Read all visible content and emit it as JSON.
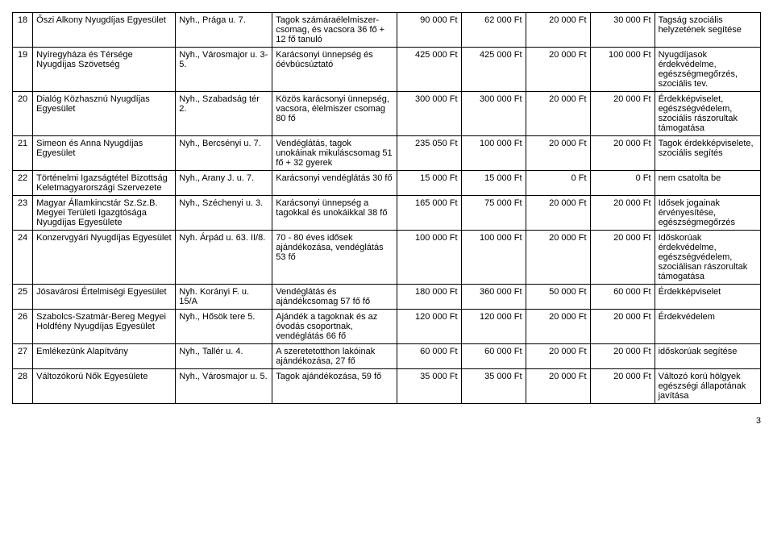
{
  "page_number": "3",
  "rows": [
    {
      "n": "18",
      "org": "Őszi Alkony Nyugdíjas Egyesület",
      "addr": "Nyh., Prága u. 7.",
      "desc": "Tagok számáraélelmiszer-csomag, és vacsora 36 fő + 12 fő tanuló",
      "c1": "90 000 Ft",
      "c2": "62 000 Ft",
      "c3": "20 000 Ft",
      "c4": "30 000 Ft",
      "note": "Tagság szociális helyzetének segítése"
    },
    {
      "n": "19",
      "org": "Nyíregyháza és Térsége Nyugdíjas Szövetség",
      "addr": "Nyh., Városmajor u. 3-5.",
      "desc": "Karácsonyi ünnepség és óévbúcsúztató",
      "c1": "425 000 Ft",
      "c2": "425 000 Ft",
      "c3": "20 000 Ft",
      "c4": "100 000 Ft",
      "note": "Nyugdíjasok érdekvédelme, egészségmegőrzés, szociális tev."
    },
    {
      "n": "20",
      "org": "Dialóg Közhasznú Nyugdíjas Egyesület",
      "addr": "Nyh., Szabadság tér 2.",
      "desc": "Közös karácsonyi ünnepség, vacsora, élelmiszer csomag 80 fő",
      "c1": "300 000 Ft",
      "c2": "300 000 Ft",
      "c3": "20 000 Ft",
      "c4": "20 000 Ft",
      "note": "Érdekképviselet, egészségvédelem, szociális rászorultak támogatása"
    },
    {
      "n": "21",
      "org": "Simeon és Anna Nyugdíjas Egyesület",
      "addr": "Nyh., Bercsényi u. 7.",
      "desc": "Vendéglátás, tagok unokáinak mikuláscsomag 51 fő + 32 gyerek",
      "c1": "235 050 Ft",
      "c2": "100 000 Ft",
      "c3": "20 000 Ft",
      "c4": "20 000 Ft",
      "note": "Tagok érdekképviselete, szociális segítés"
    },
    {
      "n": "22",
      "org": "Történelmi Igazságtétel Bizottság Keletmagyarországi Szervezete",
      "addr": "Nyh., Arany J. u. 7.",
      "desc": "Karácsonyi vendéglátás 30 fő",
      "c1": "15 000 Ft",
      "c2": "15 000 Ft",
      "c3": "0 Ft",
      "c4": "0 Ft",
      "note": "nem csatolta be"
    },
    {
      "n": "23",
      "org": "Magyar Államkincstár Sz.Sz.B. Megyei Területi Igazgtósága Nyugdíjas Egyesülete",
      "addr": "Nyh., Széchenyi u. 3.",
      "desc": "Karácsonyi ünnepség a tagokkal és unokáikkal 38 fő",
      "c1": "165 000 Ft",
      "c2": "75 000 Ft",
      "c3": "20 000 Ft",
      "c4": "20 000 Ft",
      "note": "Idősek jogainak érvényesítése, egészségmegőrzés"
    },
    {
      "n": "24",
      "org": "Konzervgyári Nyugdíjas Egyesület",
      "addr": "Nyh. Árpád u. 63. II/8.",
      "desc": "70 - 80 éves idősek ajándékozása, vendéglátás 53 fő",
      "c1": "100 000 Ft",
      "c2": "100 000 Ft",
      "c3": "20 000 Ft",
      "c4": "20 000 Ft",
      "note": "Időskorúak érdekvédelme, egészségvédelem, szociálisan rászorultak támogatása"
    },
    {
      "n": "25",
      "org": "Jósavárosi Értelmiségi Egyesület",
      "addr": "Nyh. Korányi F. u. 15/A",
      "desc": "Vendéglátás és ajándékcsomag 57 fő fő",
      "c1": "180 000 Ft",
      "c2": "360 000 Ft",
      "c3": "50 000 Ft",
      "c4": "60 000 Ft",
      "note": "Érdekképviselet"
    },
    {
      "n": "26",
      "org": "Szabolcs-Szatmár-Bereg Megyei Holdfény Nyugdíjas Egyesület",
      "addr": "Nyh., Hősök tere 5.",
      "desc": "Ajándék a tagoknak és az óvodás csoportnak, vendéglátás 66 fő",
      "c1": "120 000 Ft",
      "c2": "120 000 Ft",
      "c3": "20 000 Ft",
      "c4": "20 000 Ft",
      "note": "Érdekvédelem"
    },
    {
      "n": "27",
      "org": "Emlékezünk Alapítvány",
      "addr": "Nyh., Tallér u. 4.",
      "desc": "A szeretetotthon lakóinak ajándékozása, 27 fő",
      "c1": "60 000 Ft",
      "c2": "60 000 Ft",
      "c3": "20 000 Ft",
      "c4": "20 000 Ft",
      "note": "időskorúak segítése"
    },
    {
      "n": "28",
      "org": "Változókorú Nők Egyesülete",
      "addr": "Nyh., Városmajor u. 5.",
      "desc": "Tagok ajándékozása, 59 fő",
      "c1": "35 000 Ft",
      "c2": "35 000 Ft",
      "c3": "20 000 Ft",
      "c4": "20 000 Ft",
      "note": "Változó korú hölgyek egészségi állapotának javítása"
    }
  ]
}
